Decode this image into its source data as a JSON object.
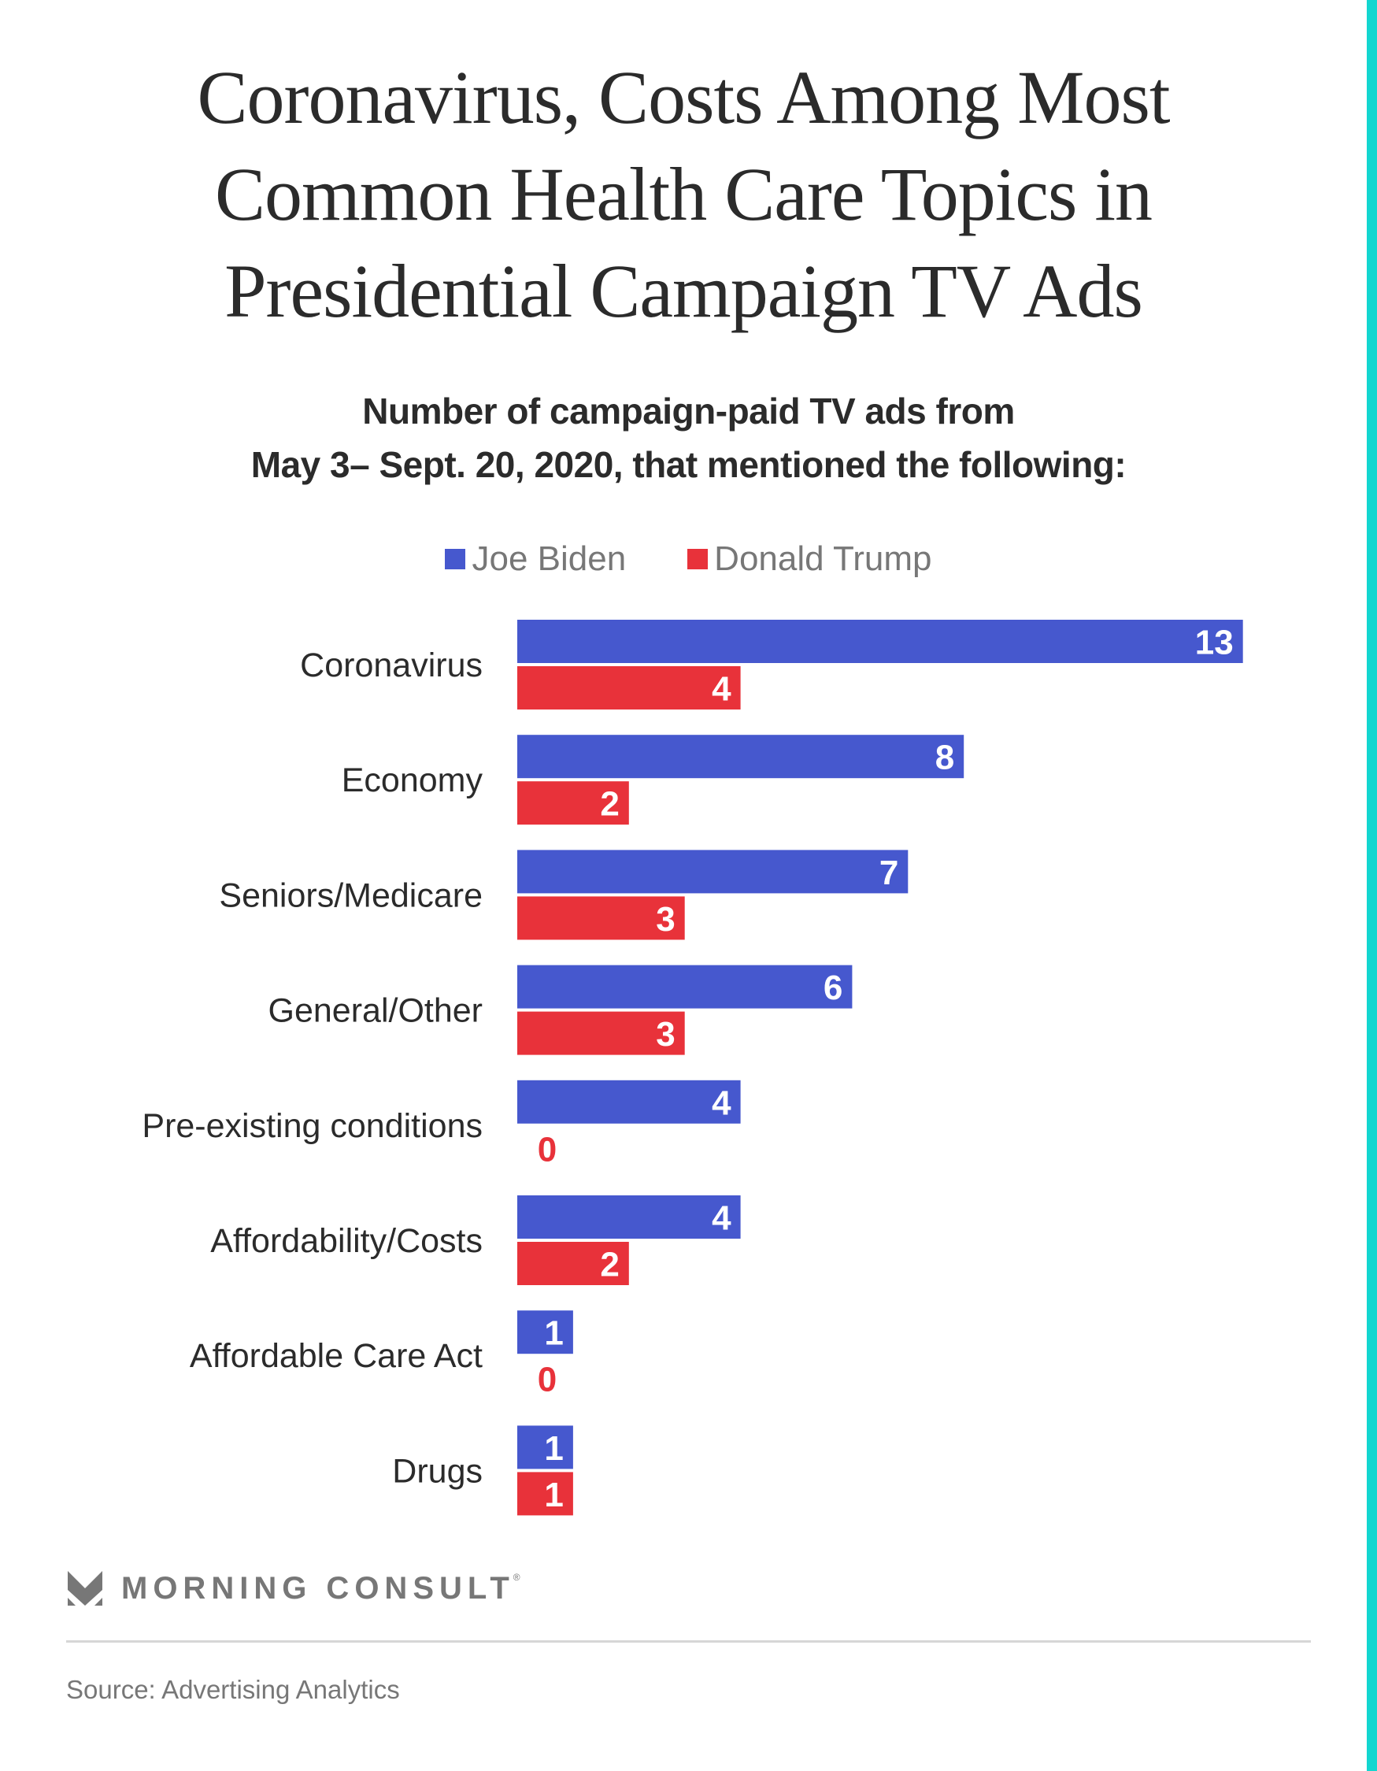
{
  "header": {
    "title_lines": [
      "Coronavirus, Costs Among Most",
      "Common Health Care Topics in",
      "Presidential Campaign TV Ads"
    ],
    "subtitle_lines": [
      "Number of campaign-paid TV ads from",
      "May 3– Sept. 20, 2020, that mentioned the following:"
    ]
  },
  "colors": {
    "biden": "#4658ce",
    "trump": "#e8323a",
    "accent": "#12d6d0",
    "text": "#2b2b2b",
    "muted": "#777777"
  },
  "chart_data": {
    "type": "bar",
    "orientation": "horizontal",
    "title": "Coronavirus, Costs Among Most Common Health Care Topics in Presidential Campaign TV Ads",
    "subtitle": "Number of campaign-paid TV ads from May 3– Sept. 20, 2020, that mentioned the following:",
    "xlabel": "",
    "ylabel": "",
    "xlim": [
      0,
      13
    ],
    "grid": false,
    "legend_position": "top-center",
    "categories": [
      "Coronavirus",
      "Economy",
      "Seniors/Medicare",
      "General/Other",
      "Pre-existing conditions",
      "Affordability/Costs",
      "Affordable Care Act",
      "Drugs"
    ],
    "series": [
      {
        "name": "Joe Biden",
        "color": "#4658ce",
        "values": [
          13,
          8,
          7,
          6,
          4,
          4,
          1,
          1
        ]
      },
      {
        "name": "Donald Trump",
        "color": "#e8323a",
        "values": [
          4,
          2,
          3,
          3,
          0,
          2,
          0,
          1
        ]
      }
    ]
  },
  "legend": {
    "items": [
      {
        "label": "Joe Biden",
        "color": "#4658ce"
      },
      {
        "label": "Donald Trump",
        "color": "#e8323a"
      }
    ]
  },
  "footer": {
    "brand": "MORNING CONSULT",
    "registered_mark": "®",
    "logo_icon": "morning-consult-logo-icon",
    "source": "Source: Advertising Analytics"
  }
}
